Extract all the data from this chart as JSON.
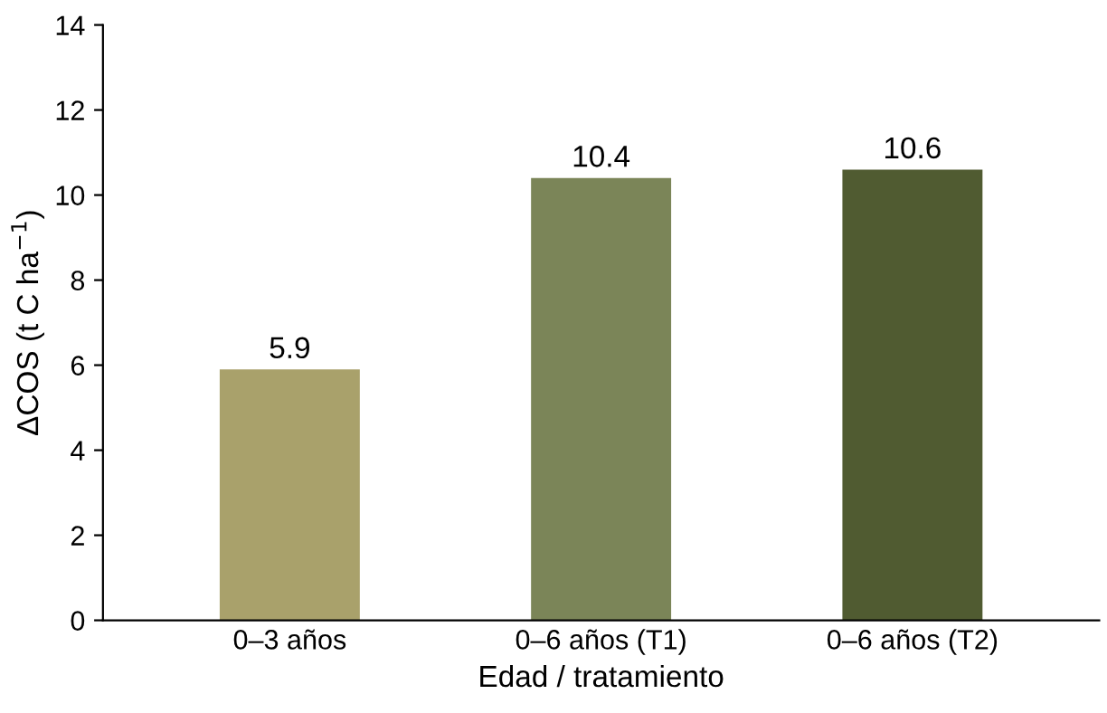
{
  "chart_data": {
    "type": "bar",
    "xlabel": "Edad / tratamiento",
    "ylabel": "ΔCOS (t C ha$^{−1}$)",
    "categories": [
      "0–3 años",
      "0–6 años (T1)",
      "0–6 años (T2)"
    ],
    "values": [
      5.9,
      10.4,
      10.6
    ],
    "colors": [
      "#a9a16b",
      "#7b8558",
      "#505b31"
    ],
    "data_labels": true,
    "ylim": [
      0,
      14
    ],
    "yticks": [
      0,
      2,
      4,
      6,
      8,
      10,
      12,
      14
    ],
    "grid": false
  }
}
